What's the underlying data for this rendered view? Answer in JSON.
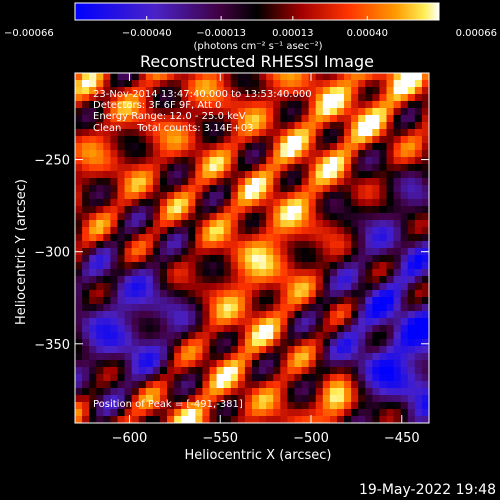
{
  "chart_data": {
    "type": "heatmap",
    "title": "Reconstructed RHESSI Image",
    "xlabel": "Heliocentric X (arcsec)",
    "ylabel": "Heliocentric Y (arcsec)",
    "xlim": [
      -630,
      -435
    ],
    "ylim": [
      -393,
      -203
    ],
    "xticks": [
      -600,
      -550,
      -500,
      -450
    ],
    "xtick_labels": [
      "−600",
      "−550",
      "−500",
      "−450"
    ],
    "yticks": [
      -250,
      -300,
      -350
    ],
    "ytick_labels": [
      "−250",
      "−300",
      "−350"
    ],
    "grid": false,
    "colorbar": {
      "location": "top",
      "min": -0.00066,
      "max": 0.00066,
      "ticks": [
        -0.00066,
        -0.0004,
        -0.00013,
        0.00013,
        0.0004,
        0.00066
      ],
      "tick_labels": [
        "−0.00066",
        "−0.00040",
        "−0.00013",
        "0.00013",
        "0.00040",
        "0.00066"
      ],
      "units_label": "(photons cm⁻² s⁻¹ asec⁻²)",
      "colormap": "blue-purple-black-red-orange-yellow-white"
    },
    "annotations": [
      "23-Nov-2014 13:47:40.000 to 13:53:40.000",
      "Detectors: 3F 6F 9F, Att 0",
      "Energy Range: 12.0 - 25.0 keV",
      "Clean     Total counts: 3.14E+03"
    ],
    "peak_label": "Position of Peak = [-491,-381]",
    "peak": {
      "x": -491,
      "y": -381
    }
  },
  "footer": {
    "timestamp": "19-May-2022 19:48"
  },
  "colors": {
    "background": "#000000",
    "text": "#ffffff"
  }
}
